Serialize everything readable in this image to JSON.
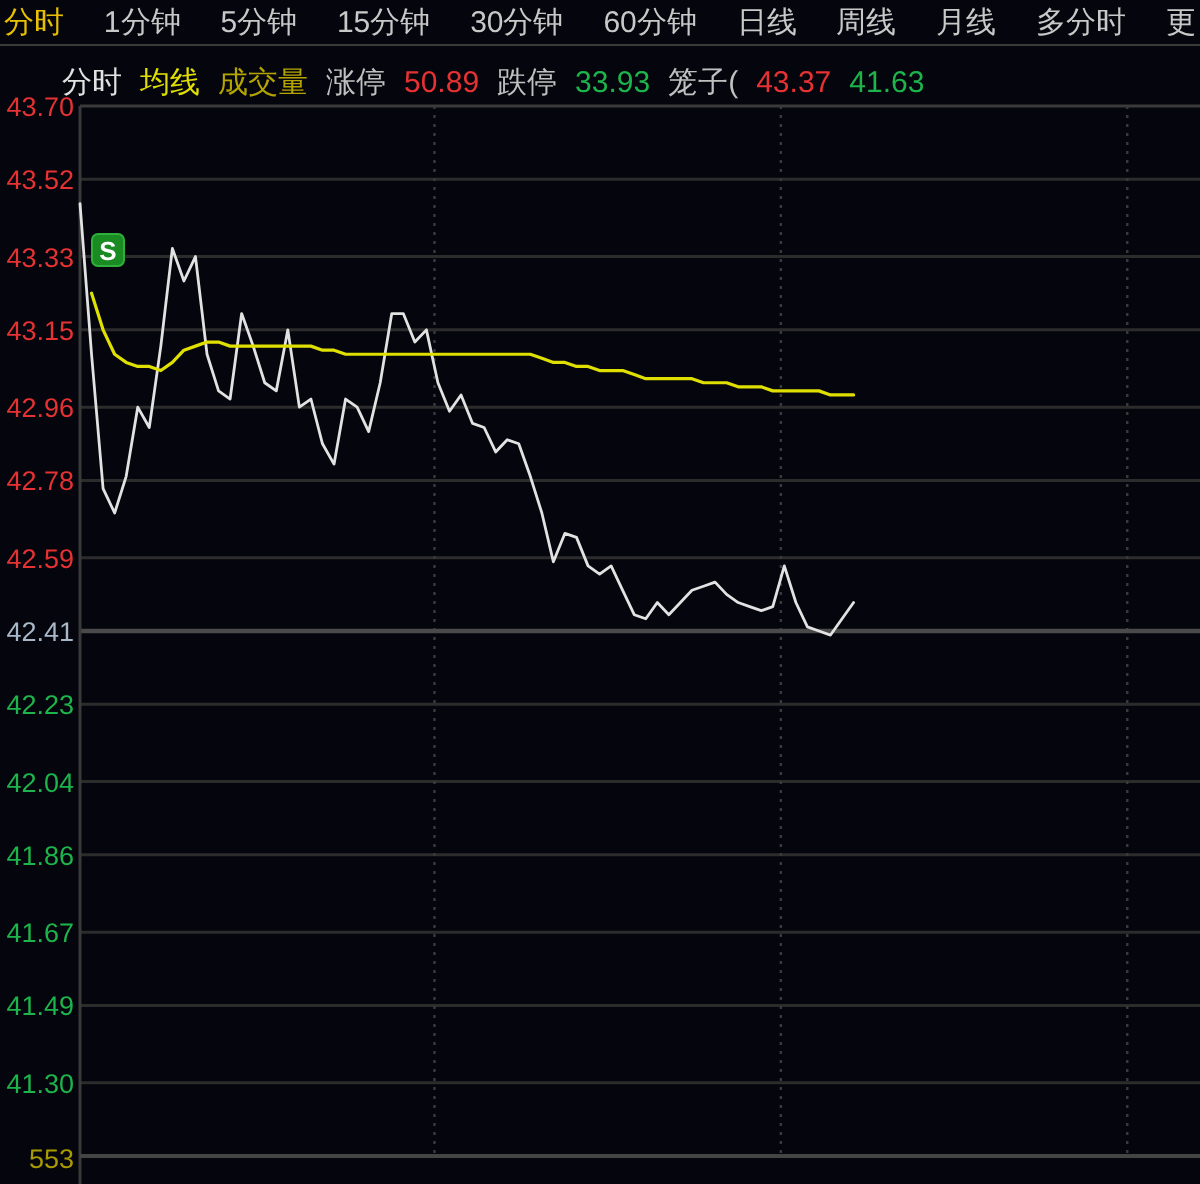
{
  "chart_data": {
    "type": "line",
    "annotations": [
      "分时",
      "1分钟",
      "5分钟",
      "15分钟",
      "30分钟",
      "60分钟",
      "日线",
      "周线",
      "月线",
      "多分时",
      "更",
      "成交量",
      "涨停",
      "50.89",
      "跌停",
      "33.93",
      "笼子(",
      "43.37",
      "41.63",
      "553",
      "S"
    ],
    "categories": [
      null,
      null,
      null,
      null,
      null,
      null,
      null,
      null,
      null,
      null,
      null,
      null,
      null,
      null,
      null,
      null,
      null,
      null,
      null,
      null,
      null,
      null,
      null,
      null,
      null,
      null,
      null,
      null,
      null,
      null,
      null,
      null,
      null,
      null,
      null,
      null,
      null,
      null,
      null,
      null,
      null,
      null,
      null,
      null,
      null,
      null,
      null,
      null,
      null,
      null,
      null,
      null,
      null,
      null,
      null,
      null,
      null,
      null,
      null,
      null,
      null,
      null,
      null,
      null,
      null,
      null,
      null,
      null,
      null,
      null,
      null,
      null,
      null,
      null,
      null,
      null,
      null,
      null,
      null,
      null,
      null,
      null,
      null,
      null,
      null,
      null,
      null,
      null,
      null,
      null,
      null,
      null,
      null,
      null,
      null,
      null,
      null,
      null
    ],
    "series": [
      {
        "name": "分时",
        "color": "#e2e2e2",
        "values": [
          43.46,
          43.09,
          42.76,
          42.7,
          42.79,
          42.96,
          42.91,
          43.11,
          43.35,
          43.27,
          43.33,
          43.09,
          43.0,
          42.98,
          43.19,
          43.11,
          43.02,
          43.0,
          43.15,
          42.96,
          42.98,
          42.87,
          42.82,
          42.98,
          42.96,
          42.9,
          43.02,
          43.19,
          43.19,
          43.12,
          43.15,
          43.02,
          42.95,
          42.99,
          42.92,
          42.91,
          42.85,
          42.88,
          42.87,
          42.79,
          42.7,
          42.58,
          42.65,
          42.64,
          42.57,
          42.55,
          42.57,
          42.51,
          42.45,
          42.44,
          42.48,
          42.45,
          42.48,
          42.51,
          42.52,
          42.53,
          42.5,
          42.48,
          42.47,
          42.46,
          42.47,
          42.57,
          42.48,
          42.42,
          42.41,
          42.4,
          42.44,
          42.48,
          null,
          null,
          null,
          null,
          null,
          null,
          null,
          null,
          null,
          null,
          null,
          null,
          null,
          null,
          null,
          null,
          null,
          null,
          null,
          null,
          null,
          null,
          null,
          null,
          null,
          null,
          null,
          null,
          null,
          null
        ]
      },
      {
        "name": "均线",
        "color": "#e0e000",
        "values": [
          null,
          43.24,
          43.15,
          43.09,
          43.07,
          43.06,
          43.06,
          43.05,
          43.07,
          43.1,
          43.11,
          43.12,
          43.12,
          43.11,
          43.11,
          43.11,
          43.11,
          43.11,
          43.11,
          43.11,
          43.11,
          43.1,
          43.1,
          43.09,
          43.09,
          43.09,
          43.09,
          43.09,
          43.09,
          43.09,
          43.09,
          43.09,
          43.09,
          43.09,
          43.09,
          43.09,
          43.09,
          43.09,
          43.09,
          43.09,
          43.08,
          43.07,
          43.07,
          43.06,
          43.06,
          43.05,
          43.05,
          43.05,
          43.04,
          43.03,
          43.03,
          43.03,
          43.03,
          43.03,
          43.02,
          43.02,
          43.02,
          43.01,
          43.01,
          43.01,
          43.0,
          43.0,
          43.0,
          43.0,
          43.0,
          42.99,
          42.99,
          42.99,
          null,
          null,
          null,
          null,
          null,
          null,
          null,
          null,
          null,
          null,
          null,
          null,
          null,
          null,
          null,
          null,
          null,
          null,
          null,
          null,
          null,
          null,
          null,
          null,
          null,
          null,
          null,
          null,
          null,
          null
        ]
      }
    ],
    "ylim": [
      41.12,
      43.7
    ],
    "yticks": [
      {
        "value": 43.7,
        "label": "43.70"
      },
      43.52,
      43.33,
      43.15,
      42.96,
      42.78,
      42.59,
      42.41,
      42.23,
      42.04,
      41.86,
      41.67,
      41.49,
      {
        "value": 41.3,
        "label": "41.30"
      }
    ],
    "ref_lines": [
      {
        "axis": "y",
        "value": 42.41,
        "color": "#4a4a4a"
      }
    ],
    "grid": true
  }
}
